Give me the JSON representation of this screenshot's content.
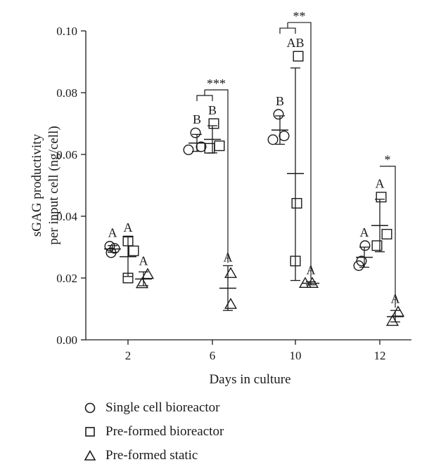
{
  "chart_data": {
    "type": "scatter",
    "xlabel": "Days in culture",
    "ylabel": [
      "sGAG productivity",
      "per input cell (ng/cell)"
    ],
    "ylim": [
      0,
      0.1
    ],
    "yticks": [
      "0.00",
      "0.02",
      "0.04",
      "0.06",
      "0.08",
      "0.10"
    ],
    "categories": [
      "2",
      "6",
      "10",
      "12"
    ],
    "grid": false,
    "series": [
      {
        "name": "Single cell bioreactor",
        "marker": "circle",
        "groups": [
          {
            "day": "2",
            "points": [
              0.0303,
              0.0296,
              0.0282
            ],
            "mean": 0.0294,
            "sd_low": 0.0283,
            "sd_high": 0.0305,
            "letter": "A"
          },
          {
            "day": "6",
            "points": [
              0.067,
              0.0615,
              0.0625
            ],
            "mean": 0.0637,
            "sd_low": 0.061,
            "sd_high": 0.0665,
            "letter": "B"
          },
          {
            "day": "10",
            "points": [
              0.073,
              0.0648,
              0.066
            ],
            "mean": 0.0679,
            "sd_low": 0.0633,
            "sd_high": 0.0725,
            "letter": "B"
          },
          {
            "day": "12",
            "points": [
              0.0305,
              0.024,
              0.0255
            ],
            "mean": 0.0267,
            "sd_low": 0.0235,
            "sd_high": 0.03,
            "letter": "A"
          }
        ]
      },
      {
        "name": "Pre-formed bioreactor",
        "marker": "square",
        "groups": [
          {
            "day": "2",
            "points": [
              0.032,
              0.0288,
              0.02
            ],
            "mean": 0.0269,
            "sd_low": 0.0205,
            "sd_high": 0.0333,
            "letter": "A"
          },
          {
            "day": "6",
            "points": [
              0.07,
              0.062,
              0.0628
            ],
            "mean": 0.0649,
            "sd_low": 0.0605,
            "sd_high": 0.0693,
            "letter": "B"
          },
          {
            "day": "10",
            "points": [
              0.0918,
              0.0442,
              0.0255
            ],
            "mean": 0.0538,
            "sd_low": 0.0192,
            "sd_high": 0.088,
            "letter": "AB"
          },
          {
            "day": "12",
            "points": [
              0.0462,
              0.0305,
              0.0342
            ],
            "mean": 0.037,
            "sd_low": 0.0285,
            "sd_high": 0.0455,
            "letter": "A"
          }
        ]
      },
      {
        "name": "Pre-formed static",
        "marker": "triangle",
        "groups": [
          {
            "day": "2",
            "points": [
              0.0182,
              0.0212
            ],
            "mean": 0.0197,
            "sd_low": 0.0175,
            "sd_high": 0.022,
            "letter": "A"
          },
          {
            "day": "6",
            "points": [
              0.0215,
              0.0115
            ],
            "mean": 0.0167,
            "sd_low": 0.0095,
            "sd_high": 0.024,
            "letter": "A"
          },
          {
            "day": "10",
            "points": [
              0.0183,
              0.0183
            ],
            "mean": 0.0183,
            "sd_low": 0.0178,
            "sd_high": 0.0188,
            "letter": "A"
          },
          {
            "day": "12",
            "points": [
              0.006,
              0.009
            ],
            "mean": 0.0075,
            "sd_low": 0.0058,
            "sd_high": 0.0095,
            "letter": "A"
          }
        ]
      }
    ],
    "significance": [
      {
        "day": "6",
        "from": "Single cell bioreactor",
        "mid": "Pre-formed bioreactor",
        "to": "Pre-formed static",
        "label": "***"
      },
      {
        "day": "10",
        "from": "Single cell bioreactor",
        "mid": "Pre-formed bioreactor",
        "to": "Pre-formed static",
        "label": "**"
      },
      {
        "day": "12",
        "from": "Pre-formed bioreactor",
        "to": "Pre-formed static",
        "label": "*"
      }
    ]
  },
  "legend": {
    "items": [
      {
        "marker": "circle",
        "label": "Single cell bioreactor"
      },
      {
        "marker": "square",
        "label": "Pre-formed bioreactor"
      },
      {
        "marker": "triangle",
        "label": "Pre-formed static"
      }
    ]
  }
}
